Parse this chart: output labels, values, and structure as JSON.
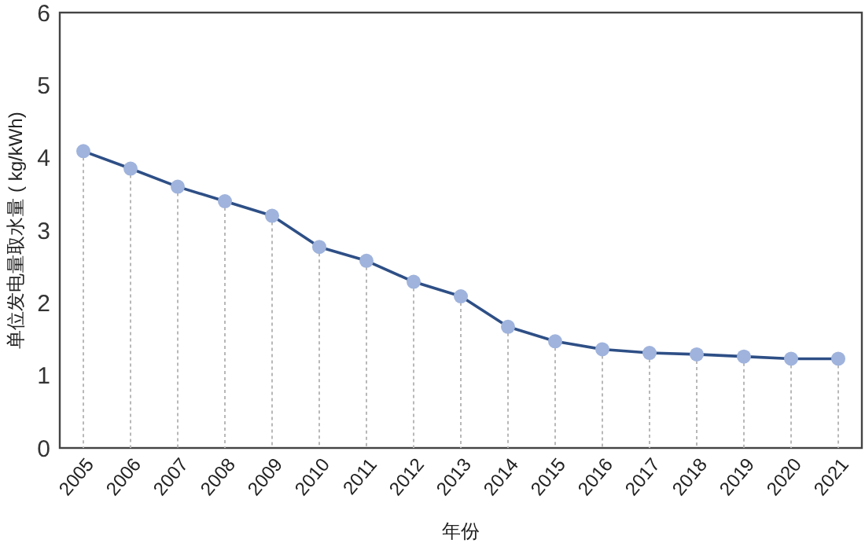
{
  "chart_data": {
    "type": "line",
    "xlabel": "年份",
    "ylabel": "单位发电量取水量 ( kg/kWh)",
    "categories": [
      "2005",
      "2006",
      "2007",
      "2008",
      "2009",
      "2010",
      "2011",
      "2012",
      "2013",
      "2014",
      "2015",
      "2016",
      "2017",
      "2018",
      "2019",
      "2020",
      "2021"
    ],
    "series": [
      {
        "color": "#2e4f86",
        "values": [
          4.09,
          3.85,
          3.6,
          3.4,
          3.2,
          2.77,
          2.58,
          2.29,
          2.09,
          1.67,
          1.47,
          1.36,
          1.31,
          1.29,
          1.26,
          1.23,
          1.23
        ],
        "errors": [
          [
            4.09,
            0
          ],
          [
            3.85,
            0
          ],
          [
            3.6,
            0
          ],
          [
            3.4,
            0
          ],
          [
            3.2,
            0
          ],
          [
            2.77,
            0
          ],
          [
            2.58,
            0
          ],
          [
            2.29,
            0
          ],
          [
            2.09,
            0
          ],
          [
            1.67,
            0
          ],
          [
            1.47,
            0
          ],
          [
            1.36,
            0
          ],
          [
            1.31,
            0
          ],
          [
            1.29,
            0
          ],
          [
            1.26,
            0
          ],
          [
            1.23,
            0
          ],
          [
            1.23,
            0
          ]
        ]
      }
    ],
    "ylim": [
      0,
      6
    ],
    "yticks": [
      0,
      1,
      2,
      3,
      4,
      5,
      6
    ],
    "marker": "circle",
    "line_style": "solid"
  }
}
